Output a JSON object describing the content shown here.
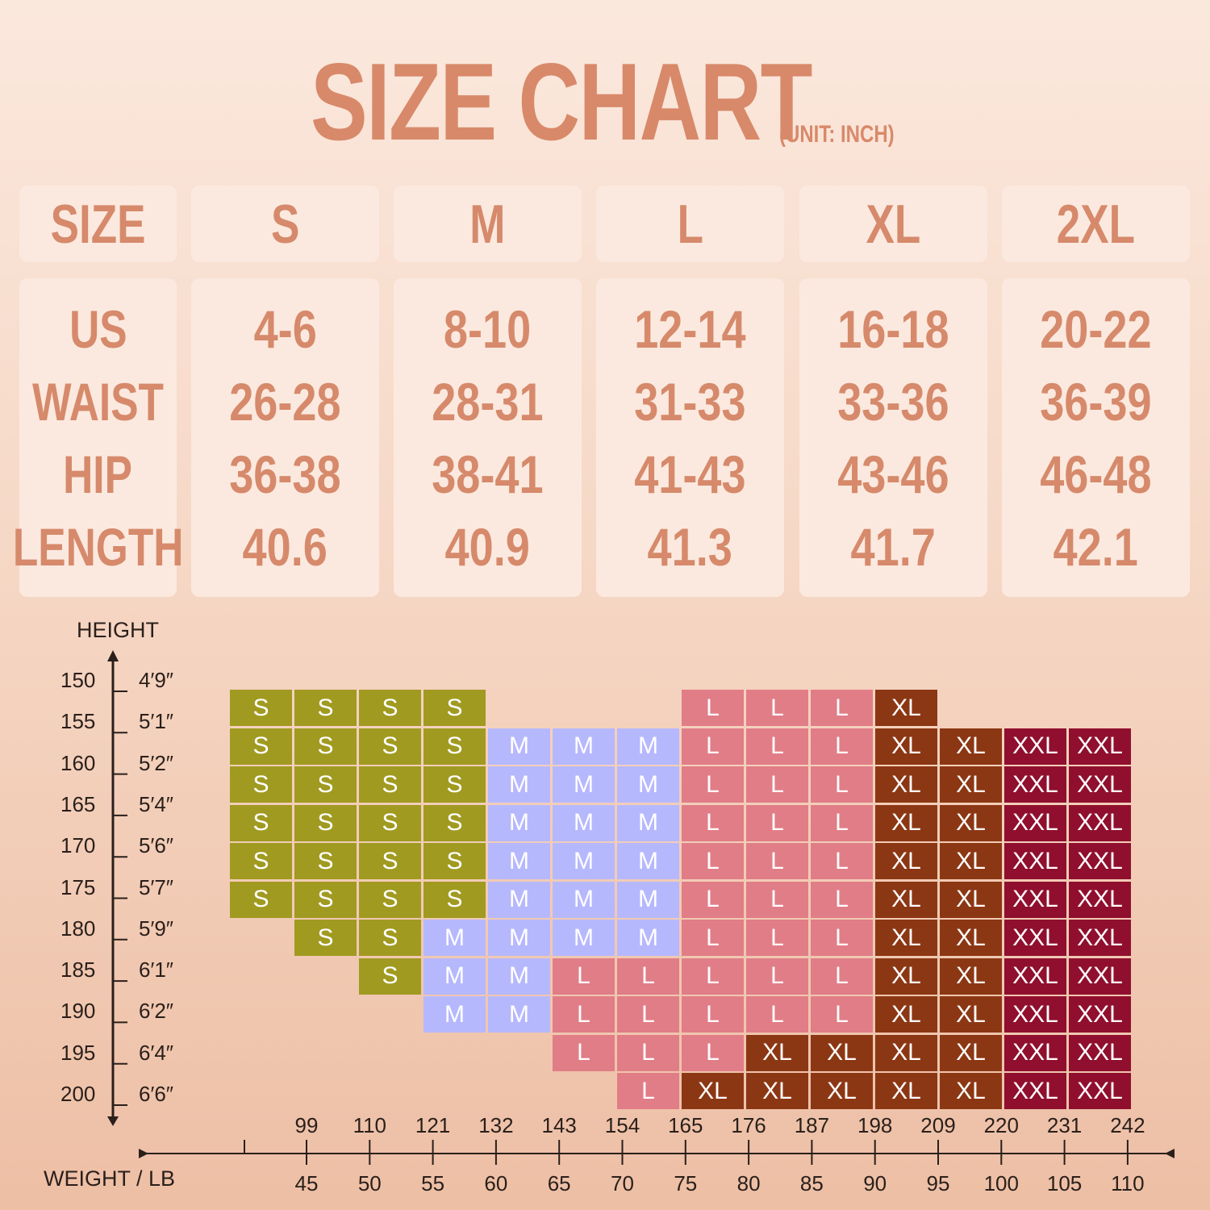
{
  "title": "SIZE CHART",
  "unit": "(UNIT: INCH)",
  "table": {
    "label_header": "SIZE",
    "row_labels": [
      "US",
      "WAIST",
      "HIP",
      "LENGTH"
    ],
    "columns": [
      {
        "size": "S",
        "values": [
          "4-6",
          "26-28",
          "36-38",
          "40.6"
        ]
      },
      {
        "size": "M",
        "values": [
          "8-10",
          "28-31",
          "38-41",
          "40.9"
        ]
      },
      {
        "size": "L",
        "values": [
          "12-14",
          "31-33",
          "41-43",
          "41.3"
        ]
      },
      {
        "size": "XL",
        "values": [
          "16-18",
          "33-36",
          "43-46",
          "41.7"
        ]
      },
      {
        "size": "2XL",
        "values": [
          "20-22",
          "36-39",
          "46-48",
          "42.1"
        ]
      }
    ]
  },
  "height_axis": {
    "title": "HEIGHT",
    "cm": [
      "150",
      "155",
      "160",
      "165",
      "170",
      "175",
      "180",
      "185",
      "190",
      "195",
      "200"
    ],
    "ft": [
      "4′9″",
      "5′1″",
      "5′2″",
      "5′4″",
      "5′6″",
      "5′7″",
      "5′9″",
      "6′1″",
      "6′2″",
      "6′4″",
      "6′6″"
    ]
  },
  "weight_axis": {
    "title": "WEIGHT / LB",
    "lb": [
      "99",
      "110",
      "121",
      "132",
      "143",
      "154",
      "165",
      "176",
      "187",
      "198",
      "209",
      "220",
      "231",
      "242"
    ],
    "kg": [
      "45",
      "50",
      "55",
      "60",
      "65",
      "70",
      "75",
      "80",
      "85",
      "90",
      "95",
      "100",
      "105",
      "110"
    ]
  },
  "size_colors": {
    "S": "#a09a21",
    "M": "#b6b8fd",
    "L": "#e17d87",
    "XL": "#8c3714",
    "XXL": "#900f2e"
  },
  "grid": [
    [
      "S",
      "S",
      "S",
      "S",
      "",
      "",
      "",
      "L",
      "L",
      "L",
      "XL",
      "",
      "",
      ""
    ],
    [
      "S",
      "S",
      "S",
      "S",
      "M",
      "M",
      "M",
      "L",
      "L",
      "L",
      "XL",
      "XL",
      "XXL",
      "XXL"
    ],
    [
      "S",
      "S",
      "S",
      "S",
      "M",
      "M",
      "M",
      "L",
      "L",
      "L",
      "XL",
      "XL",
      "XXL",
      "XXL"
    ],
    [
      "S",
      "S",
      "S",
      "S",
      "M",
      "M",
      "M",
      "L",
      "L",
      "L",
      "XL",
      "XL",
      "XXL",
      "XXL"
    ],
    [
      "S",
      "S",
      "S",
      "S",
      "M",
      "M",
      "M",
      "L",
      "L",
      "L",
      "XL",
      "XL",
      "XXL",
      "XXL"
    ],
    [
      "S",
      "S",
      "S",
      "S",
      "M",
      "M",
      "M",
      "L",
      "L",
      "L",
      "XL",
      "XL",
      "XXL",
      "XXL"
    ],
    [
      "",
      "S",
      "S",
      "M",
      "M",
      "M",
      "M",
      "L",
      "L",
      "L",
      "XL",
      "XL",
      "XXL",
      "XXL"
    ],
    [
      "",
      "",
      "S",
      "M",
      "M",
      "L",
      "L",
      "L",
      "L",
      "L",
      "XL",
      "XL",
      "XXL",
      "XXL"
    ],
    [
      "",
      "",
      "",
      "M",
      "M",
      "L",
      "L",
      "L",
      "L",
      "L",
      "XL",
      "XL",
      "XXL",
      "XXL"
    ],
    [
      "",
      "",
      "",
      "",
      "",
      "L",
      "L",
      "L",
      "XL",
      "XL",
      "XL",
      "XL",
      "XXL",
      "XXL"
    ],
    [
      "",
      "",
      "",
      "",
      "",
      "",
      "L",
      "XL",
      "XL",
      "XL",
      "XL",
      "XL",
      "XXL",
      "XXL"
    ]
  ]
}
